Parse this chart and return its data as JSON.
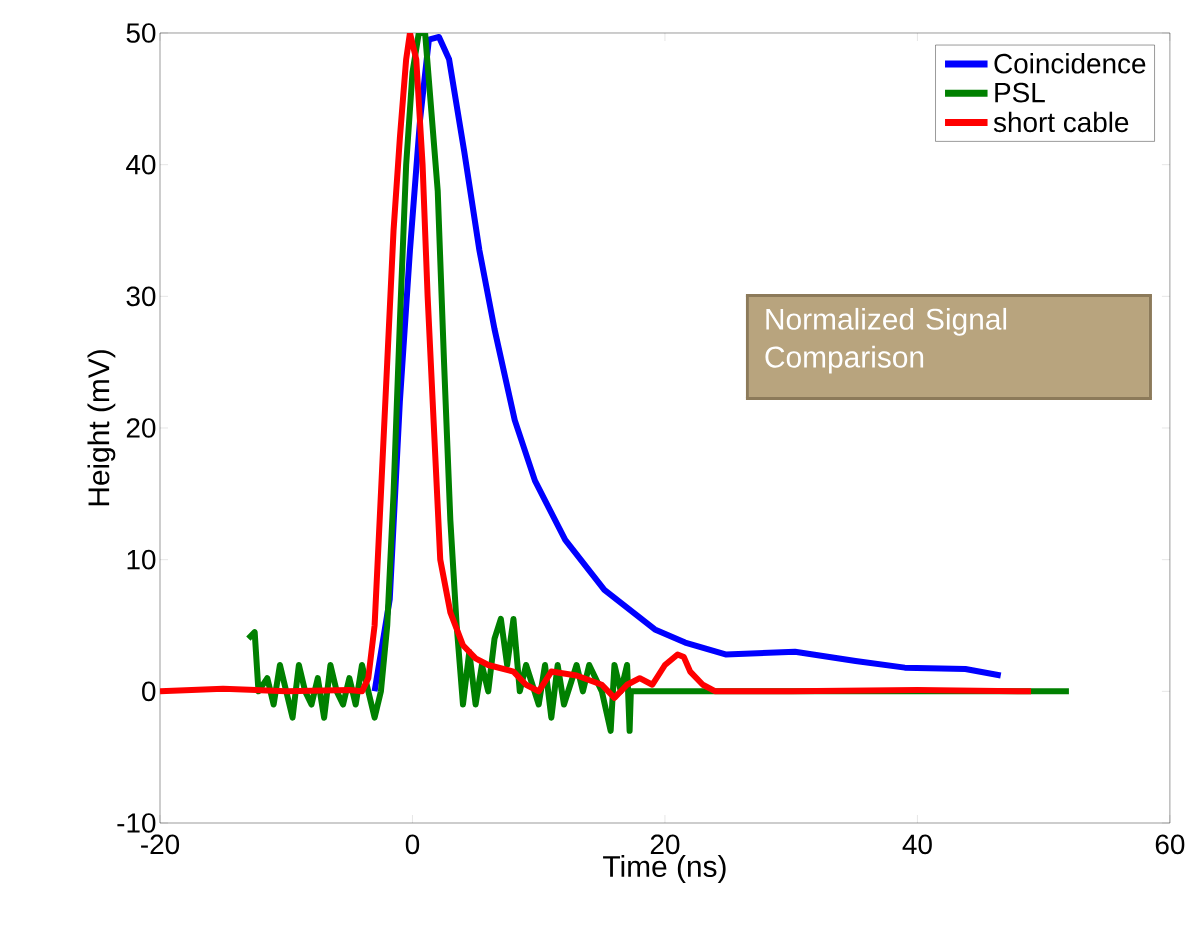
{
  "chart_data": {
    "type": "line",
    "xlabel": "Time (ns)",
    "ylabel": "Height (mV)",
    "xlim": [
      -20,
      60
    ],
    "ylim": [
      -10,
      50
    ],
    "xticks": [
      -20,
      0,
      20,
      40,
      60
    ],
    "yticks": [
      -10,
      0,
      10,
      20,
      30,
      40,
      50
    ],
    "grid": false,
    "legend": "top right",
    "marker": "none",
    "line_style": "solid",
    "annotations": [
      "Normalized Signal Comparison"
    ],
    "series": [
      {
        "name": "Coincidence",
        "color": "#0000ff",
        "x": [
          -3,
          -1.8,
          -1.0,
          -0.2,
          0.6,
          1.3,
          2.1,
          2.9,
          4.1,
          5.3,
          6.5,
          8.1,
          9.7,
          12.1,
          15.2,
          19.2,
          21.6,
          24.8,
          30.3,
          35.1,
          39,
          43.8,
          46.6
        ],
        "values": [
          0,
          7,
          22,
          33.5,
          43.4,
          49.5,
          49.7,
          48,
          41,
          33.5,
          27.5,
          20.6,
          16,
          11.5,
          7.7,
          4.7,
          3.7,
          2.8,
          3,
          2.3,
          1.8,
          1.7,
          1.2
        ]
      },
      {
        "name": "PSL",
        "color": "#008000",
        "x": [
          -13,
          -12.5,
          -12.2,
          -11.5,
          -11,
          -10.5,
          -10,
          -9.5,
          -9,
          -8.5,
          -8,
          -7.5,
          -7,
          -6.5,
          -6,
          -5.5,
          -5,
          -4.5,
          -4,
          -3.5,
          -3,
          -2.5,
          -2,
          -1.5,
          -1,
          -0.5,
          0,
          0.5,
          1,
          1.5,
          2,
          2.5,
          3,
          3.5,
          4,
          4.5,
          5,
          5.5,
          6,
          6.5,
          7,
          7.5,
          8,
          8.5,
          9,
          10,
          10.5,
          11,
          11.5,
          12,
          13,
          13.5,
          14,
          15,
          15.7,
          16,
          16.5,
          17,
          17.2,
          17.3,
          52
        ],
        "values": [
          4,
          4.5,
          0,
          1,
          -1,
          2,
          0,
          -2,
          2,
          0,
          -1,
          1,
          -2,
          2,
          0,
          -1,
          1,
          -1,
          2,
          0,
          -2,
          0,
          5,
          15,
          28,
          40,
          47,
          50,
          50,
          44,
          38,
          25,
          13,
          5,
          -1,
          3,
          -1,
          2,
          0,
          4,
          5.5,
          2,
          5.5,
          0,
          2,
          -1,
          2,
          -2,
          2,
          -1,
          2,
          0,
          2,
          0,
          -3,
          2,
          0,
          2,
          -3,
          0,
          0
        ]
      },
      {
        "name": "short cable",
        "color": "#ff0000",
        "x": [
          -20,
          -15,
          -10,
          -5,
          -4,
          -3.5,
          -3,
          -2.5,
          -2,
          -1.5,
          -1,
          -0.5,
          -0.2,
          0.3,
          0.8,
          1.2,
          1.7,
          2.2,
          3,
          4,
          5,
          6,
          8,
          9,
          10,
          11,
          13,
          15,
          16,
          17,
          18,
          19,
          20,
          21,
          21.5,
          22,
          23,
          24,
          30,
          40,
          49
        ],
        "values": [
          0,
          0.2,
          0,
          0.1,
          0,
          1,
          5,
          15,
          25,
          35,
          42,
          48,
          50,
          48,
          40,
          30,
          20,
          10,
          6,
          3.5,
          2.5,
          2,
          1.5,
          0.5,
          0,
          1.5,
          1.2,
          0.5,
          -0.5,
          0.5,
          1.0,
          0.5,
          2,
          2.8,
          2.6,
          1.5,
          0.5,
          0,
          0,
          0.1,
          0
        ]
      }
    ]
  }
}
